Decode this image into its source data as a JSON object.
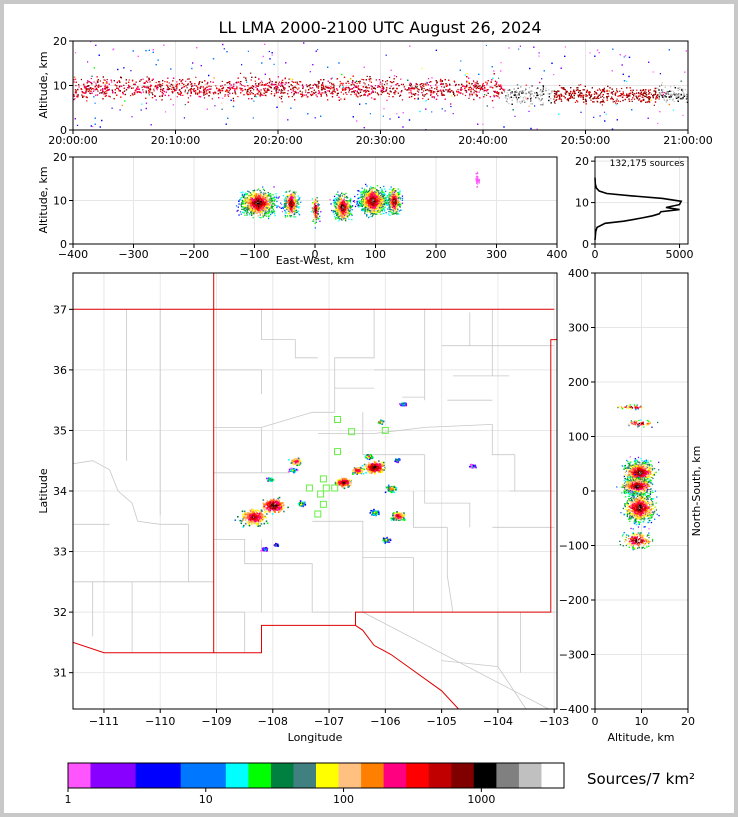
{
  "title": "LL LMA 2000-2100 UTC August 26, 2024",
  "chart_data": [
    {
      "type": "heatmap",
      "name": "altitude-time",
      "ylabel": "Altitude, km",
      "ylim": [
        0,
        20
      ],
      "yticks": [
        "0",
        "10",
        "20"
      ],
      "xticks": [
        "20:00:00",
        "20:10:00",
        "20:20:00",
        "20:30:00",
        "20:40:00",
        "20:50:00",
        "21:00:00"
      ]
    },
    {
      "type": "heatmap",
      "name": "altitude-east-west",
      "xlabel": "East-West, km",
      "ylabel": "Altitude, km",
      "xlim": [
        -400,
        400
      ],
      "ylim": [
        0,
        20
      ],
      "xticks": [
        "−400",
        "−300",
        "−200",
        "−100",
        "0",
        "100",
        "200",
        "300",
        "400"
      ],
      "yticks": [
        "0",
        "10",
        "20"
      ]
    },
    {
      "type": "line",
      "name": "altitude-histogram",
      "annotation": "132,175 sources",
      "xlim": [
        0,
        5500
      ],
      "ylim": [
        0,
        21
      ],
      "xticks": [
        "0",
        "5000"
      ],
      "yticks": [
        "0",
        "10",
        "20"
      ],
      "points": [
        {
          "y": 1,
          "x": 0
        },
        {
          "y": 3,
          "x": 40
        },
        {
          "y": 4,
          "x": 120
        },
        {
          "y": 5,
          "x": 600
        },
        {
          "y": 5.5,
          "x": 1700
        },
        {
          "y": 6.3,
          "x": 2800
        },
        {
          "y": 6.8,
          "x": 3400
        },
        {
          "y": 7.3,
          "x": 3800
        },
        {
          "y": 7.8,
          "x": 3900
        },
        {
          "y": 8.3,
          "x": 5000
        },
        {
          "y": 8.8,
          "x": 4200
        },
        {
          "y": 9.5,
          "x": 5000
        },
        {
          "y": 10.3,
          "x": 5100
        },
        {
          "y": 11,
          "x": 4000
        },
        {
          "y": 11.6,
          "x": 2200
        },
        {
          "y": 12.2,
          "x": 700
        },
        {
          "y": 12.8,
          "x": 250
        },
        {
          "y": 13.5,
          "x": 80
        },
        {
          "y": 14.5,
          "x": 20
        },
        {
          "y": 16,
          "x": 0
        }
      ]
    },
    {
      "type": "heatmap",
      "name": "plan-view-map",
      "xlabel": "Longitude",
      "ylabel": "Latitude",
      "xlim": [
        -111.55,
        -102.95
      ],
      "ylim": [
        30.4,
        37.6
      ],
      "xticks": [
        "−111",
        "−110",
        "−109",
        "−108",
        "−107",
        "−106",
        "−105",
        "−104",
        "−103"
      ],
      "yticks": [
        "31",
        "32",
        "33",
        "34",
        "35",
        "36",
        "37"
      ],
      "stations": [
        {
          "lon": -106.85,
          "lat": 35.18
        },
        {
          "lon": -106.6,
          "lat": 34.98
        },
        {
          "lon": -106.0,
          "lat": 35.0
        },
        {
          "lon": -106.85,
          "lat": 34.65
        },
        {
          "lon": -107.1,
          "lat": 34.2
        },
        {
          "lon": -107.35,
          "lat": 34.05
        },
        {
          "lon": -107.15,
          "lat": 33.95
        },
        {
          "lon": -107.1,
          "lat": 33.78
        },
        {
          "lon": -107.2,
          "lat": 33.62
        },
        {
          "lon": -106.9,
          "lat": 34.05
        },
        {
          "lon": -107.05,
          "lat": 34.05
        }
      ]
    },
    {
      "type": "heatmap",
      "name": "north-south-altitude",
      "xlabel": "Altitude, km",
      "ylabel": "North-South, km",
      "xlim": [
        0,
        20
      ],
      "ylim": [
        -400,
        400
      ],
      "xticks": [
        "0",
        "10",
        "20"
      ],
      "yticks": [
        "−400",
        "−300",
        "−200",
        "−100",
        "0",
        "100",
        "200",
        "300",
        "400"
      ]
    },
    {
      "type": "heatmap",
      "name": "colorbar",
      "label": "Sources/7 km²",
      "ticks": [
        "1",
        "10",
        "100",
        "1000"
      ],
      "colors": [
        "#ff55ff",
        "#8800ff",
        "#0000ff",
        "#0077ff",
        "#00ffff",
        "#00ff00",
        "#008040",
        "#408080",
        "#ffff00",
        "#ffc080",
        "#ff8000",
        "#ff0080",
        "#ff0000",
        "#c00000",
        "#800000",
        "#000000",
        "#808080",
        "#c0c0c0",
        "#ffffff"
      ]
    }
  ]
}
